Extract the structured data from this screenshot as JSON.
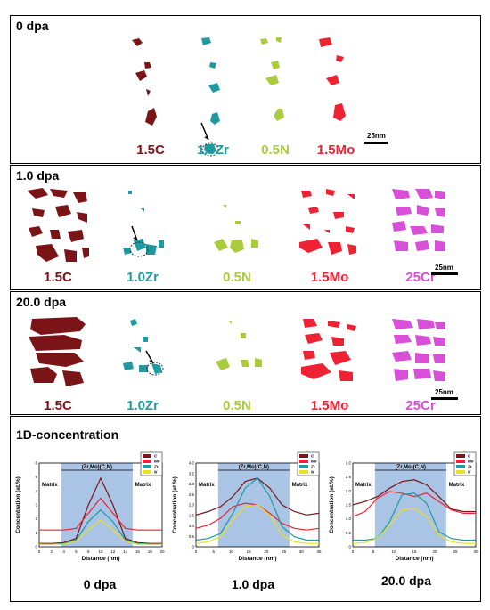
{
  "colors": {
    "C": "#7a1416",
    "Zr": "#1e9aa0",
    "N": "#a8cc3c",
    "Mo": "#ee2233",
    "Cr": "#d84fd8",
    "band": "#aac4e6"
  },
  "panels": [
    {
      "title": "0 dpa",
      "labels": [
        "1.5C",
        "1.0Zr",
        "0.5N",
        "1.5Mo"
      ],
      "scale": "25nm"
    },
    {
      "title": "1.0 dpa",
      "labels": [
        "1.5C",
        "1.0Zr",
        "0.5N",
        "1.5Mo",
        "25Cr"
      ],
      "scale": "25nm"
    },
    {
      "title": "20.0 dpa",
      "labels": [
        "1.5C",
        "1.0Zr",
        "0.5N",
        "1.5Mo",
        "25Cr"
      ],
      "scale": "25nm"
    }
  ],
  "concentration": {
    "title": "1D-concentration",
    "charts": [
      {
        "label": "0 dpa",
        "band_label": "(Zr,Mo)(C,N)",
        "matrix_label": "Matrix",
        "ylabel": "Concentration (at.%)",
        "xlabel": "Distance (nm)",
        "xticks": [
          "0",
          "2",
          "4",
          "6",
          "8",
          "10",
          "12",
          "14",
          "16",
          "18",
          "20"
        ],
        "yticks": [
          "0",
          "1",
          "2",
          "3",
          "4",
          "5",
          "6"
        ],
        "legend": [
          "C",
          "Mo",
          "Zr",
          "N"
        ]
      },
      {
        "label": "1.0 dpa",
        "band_label": "(Zr,Mo)(C,N)",
        "matrix_label": "Matrix",
        "ylabel": "Concentration (at.%)",
        "xlabel": "Distance (nm)",
        "xticks": [
          "0",
          "5",
          "10",
          "15",
          "20",
          "25",
          "30",
          "35"
        ],
        "yticks": [
          "0",
          "0.5",
          "1.0",
          "1.5",
          "2.0",
          "2.5",
          "3.0",
          "3.5",
          "4.0"
        ],
        "legend": [
          "C",
          "Mo",
          "Zr",
          "N"
        ]
      },
      {
        "label": "20.0 dpa",
        "band_label": "(Zr,Mo)(C,N)",
        "matrix_label": "Matrix",
        "ylabel": "Concentration (at.%)",
        "xlabel": "Distance (nm)",
        "xticks": [
          "0",
          "5",
          "10",
          "15",
          "20",
          "25",
          "30"
        ],
        "yticks": [
          "0",
          "0.5",
          "1.0",
          "1.5",
          "2.0",
          "2.5",
          "3.0"
        ],
        "legend": [
          "C",
          "Mo",
          "Zr",
          "N"
        ]
      }
    ]
  }
}
